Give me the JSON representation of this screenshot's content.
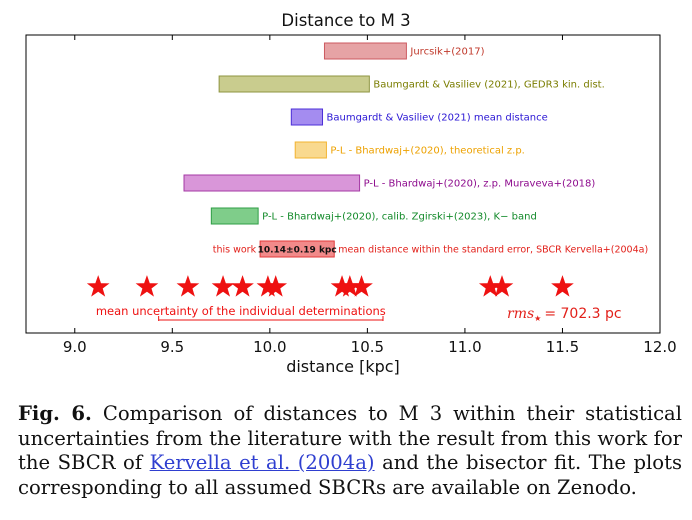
{
  "chart_data": {
    "type": "range-comparison",
    "title": "Distance to M 3",
    "xlabel": "distance [kpc]",
    "xlim": [
      8.75,
      12.0
    ],
    "xticks": [
      "9.0",
      "9.5",
      "10.0",
      "10.5",
      "11.0",
      "11.5",
      "12.0"
    ],
    "xtick_values": [
      9.0,
      9.5,
      10.0,
      10.5,
      11.0,
      11.5,
      12.0
    ],
    "grid": false,
    "bars": [
      {
        "label": "Jurcsik+(2017)",
        "xmin": 10.28,
        "xmax": 10.7,
        "fill": "#e6a3a5",
        "edge": "#cc5a60",
        "text_color": "#c0392b"
      },
      {
        "label": "Baumgardt & Vasiliev (2021), GEDR3 kin. dist.",
        "xmin": 9.74,
        "xmax": 10.51,
        "fill": "#c9cc8e",
        "edge": "#8e9440",
        "text_color": "#7a7d00"
      },
      {
        "label": "Baumgardt & Vasiliev (2021) mean distance",
        "xmin": 10.11,
        "xmax": 10.27,
        "fill": "#a48cf0",
        "edge": "#4d2fd8",
        "text_color": "#2a16d4"
      },
      {
        "label": "P-L - Bhardwaj+(2020), theoretical z.p.",
        "xmin": 10.13,
        "xmax": 10.29,
        "fill": "#f9d98f",
        "edge": "#f2b431",
        "text_color": "#eda100"
      },
      {
        "label": "P-L - Bhardwaj+(2020), z.p. Muraveva+(2018)",
        "xmin": 9.56,
        "xmax": 10.46,
        "fill": "#d996d9",
        "edge": "#a53aa5",
        "text_color": "#8d0a8d"
      },
      {
        "label": "P-L - Bhardwaj+(2020), calib. Zgirski+(2023), K− band",
        "xmin": 9.7,
        "xmax": 9.94,
        "fill": "#7fcd8a",
        "edge": "#2f9e46",
        "text_color": "#138a2a"
      },
      {
        "label": "this work",
        "xmin": 9.95,
        "xmax": 10.33,
        "fill": "#f28a8a",
        "edge": "#e23a3a",
        "text_color": "#e2201a",
        "bar_text": "10.14±0.19 kpc",
        "note": "mean distance within the standard error, SBCR Kervella+(2004a)"
      }
    ],
    "stars": [
      9.12,
      9.37,
      9.58,
      9.76,
      9.86,
      9.99,
      10.03,
      10.37,
      10.41,
      10.47,
      11.13,
      11.19,
      11.5
    ],
    "star_color": "#ee1111",
    "uncertainty_label": "mean uncertainty of the individual determinations",
    "uncertainty_range": [
      9.43,
      10.58
    ],
    "rms_symbol": "rms",
    "rms_subscript": "★",
    "rms_value": "= 702.3 pc"
  },
  "caption": {
    "label": "Fig. 6.",
    "text_1": "Comparison of distances to M 3 within their statistical uncertainties from the literature with the result from this work for the SBCR of",
    "link": "Kervella et al. (2004a)",
    "text_2": "and the bisector fit. The plots corresponding to all assumed SBCRs are available on Zenodo."
  }
}
